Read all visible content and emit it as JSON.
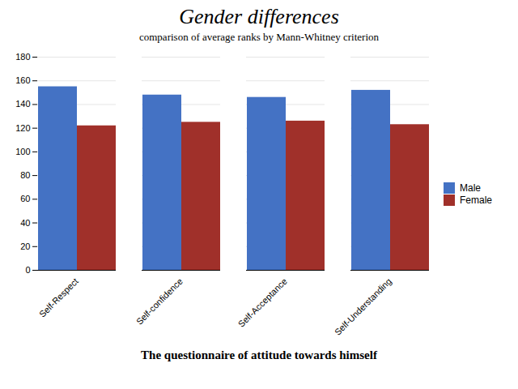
{
  "chart_data": {
    "type": "bar",
    "title": "Gender differences",
    "subtitle": "comparison of average ranks by Mann-Whitney criterion",
    "caption": "The questionnaire of attitude towards himself",
    "categories": [
      "Self-Respect",
      "Self-confidence",
      "Self-Acceptance",
      "Self-Understanding"
    ],
    "series": [
      {
        "name": "Male",
        "color": "#4472C4",
        "values": [
          155,
          148,
          146,
          152
        ]
      },
      {
        "name": "Female",
        "color": "#A0302A",
        "values": [
          122,
          125,
          126,
          123
        ]
      }
    ],
    "ylim": [
      0,
      180
    ],
    "yticks": [
      0,
      20,
      40,
      60,
      80,
      100,
      120,
      140,
      160,
      180
    ],
    "grid": true,
    "legend": "right"
  }
}
